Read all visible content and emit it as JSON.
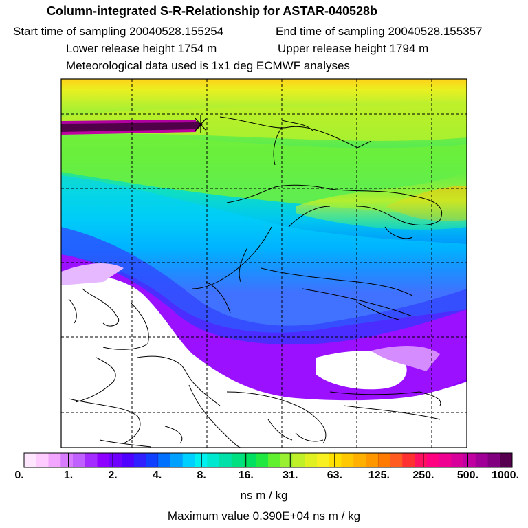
{
  "header": {
    "title": "Column-integrated S-R-Relationship for ASTAR-040528b",
    "start_time": "Start time of sampling 20040528.155254",
    "end_time": "End time of sampling 20040528.155357",
    "lower_height": "Lower release height 1754 m",
    "upper_height": "Upper release height 1794 m",
    "met_data": "Meteorological data used is 1x1 deg ECMWF analyses"
  },
  "colorbar": {
    "labels": [
      "0.",
      "1.",
      "2.",
      "4.",
      "8.",
      "16.",
      "31.",
      "63.",
      "125.",
      "250.",
      "500.",
      "1000."
    ],
    "colors": [
      "#ffe6ff",
      "#ffccff",
      "#f2a6ff",
      "#d77cff",
      "#c060ff",
      "#a42cff",
      "#8e00ff",
      "#6f00ff",
      "#5000ff",
      "#3020ff",
      "#1040ff",
      "#0070ff",
      "#00a0ff",
      "#00d0ff",
      "#00f0f0",
      "#00e8d0",
      "#00e0a8",
      "#00e080",
      "#00e060",
      "#20e840",
      "#60f030",
      "#98f030",
      "#c0f028",
      "#e0f020",
      "#f8f020",
      "#ffe000",
      "#ffc800",
      "#ffb000",
      "#ff9800",
      "#ff7a00",
      "#ff5a20",
      "#ff3030",
      "#ff1060",
      "#ff0080",
      "#f00090",
      "#d8009a",
      "#c000a0",
      "#a00098",
      "#800080",
      "#580050"
    ],
    "unit": "ns m / kg",
    "max_value": "Maximum value  0.390E+04 ns m / kg"
  }
}
